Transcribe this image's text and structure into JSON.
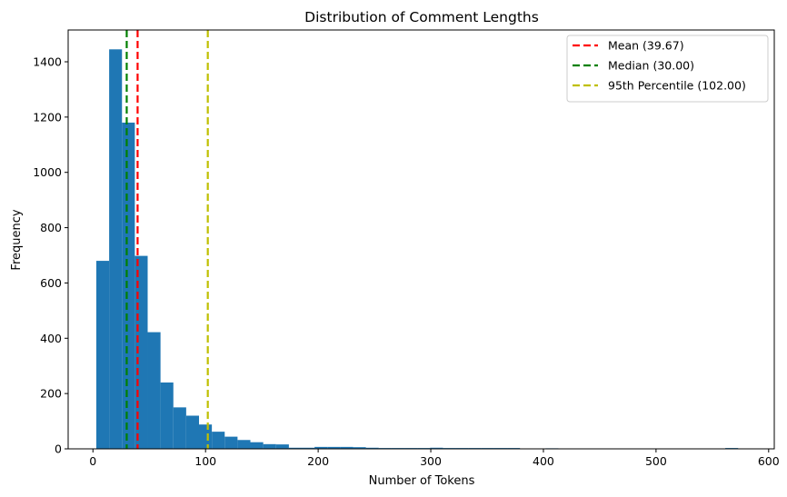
{
  "chart_data": {
    "type": "bar",
    "title": "Distribution of Comment Lengths",
    "xlabel": "Number of Tokens",
    "ylabel": "Frequency",
    "xlim": [
      -22,
      605
    ],
    "ylim": [
      0,
      1515
    ],
    "xticks": [
      0,
      100,
      200,
      300,
      400,
      500,
      600
    ],
    "yticks": [
      0,
      200,
      400,
      600,
      800,
      1000,
      1200,
      1400
    ],
    "bar_color": "#1f77b4",
    "bin_width": 11.4,
    "bins": [
      {
        "start": 3.0,
        "value": 680
      },
      {
        "start": 14.4,
        "value": 1445
      },
      {
        "start": 25.8,
        "value": 1180
      },
      {
        "start": 37.2,
        "value": 698
      },
      {
        "start": 48.6,
        "value": 422
      },
      {
        "start": 60.0,
        "value": 240
      },
      {
        "start": 71.4,
        "value": 150
      },
      {
        "start": 82.8,
        "value": 120
      },
      {
        "start": 94.2,
        "value": 88
      },
      {
        "start": 105.6,
        "value": 62
      },
      {
        "start": 117.0,
        "value": 44
      },
      {
        "start": 128.4,
        "value": 32
      },
      {
        "start": 139.8,
        "value": 24
      },
      {
        "start": 151.2,
        "value": 17
      },
      {
        "start": 162.6,
        "value": 16
      },
      {
        "start": 174.0,
        "value": 4
      },
      {
        "start": 185.4,
        "value": 4
      },
      {
        "start": 196.8,
        "value": 7
      },
      {
        "start": 208.2,
        "value": 7
      },
      {
        "start": 219.6,
        "value": 7
      },
      {
        "start": 231.0,
        "value": 6
      },
      {
        "start": 242.4,
        "value": 4
      },
      {
        "start": 253.8,
        "value": 3
      },
      {
        "start": 265.2,
        "value": 3
      },
      {
        "start": 276.6,
        "value": 3
      },
      {
        "start": 288.0,
        "value": 3
      },
      {
        "start": 299.4,
        "value": 4
      },
      {
        "start": 310.8,
        "value": 3
      },
      {
        "start": 322.2,
        "value": 3
      },
      {
        "start": 333.6,
        "value": 3
      },
      {
        "start": 345.0,
        "value": 3
      },
      {
        "start": 356.4,
        "value": 3
      },
      {
        "start": 367.8,
        "value": 3
      },
      {
        "start": 379.2,
        "value": 1
      },
      {
        "start": 401.9,
        "value": 2
      },
      {
        "start": 561.5,
        "value": 3
      }
    ],
    "lines": [
      {
        "label": "Mean (39.67)",
        "x": 39.67,
        "color": "#ff0000"
      },
      {
        "label": "Median (30.00)",
        "x": 30.0,
        "color": "#008000"
      },
      {
        "label": "95th Percentile (102.00)",
        "x": 102.0,
        "color": "#bfbf00"
      }
    ],
    "legend_position": "top-right"
  }
}
